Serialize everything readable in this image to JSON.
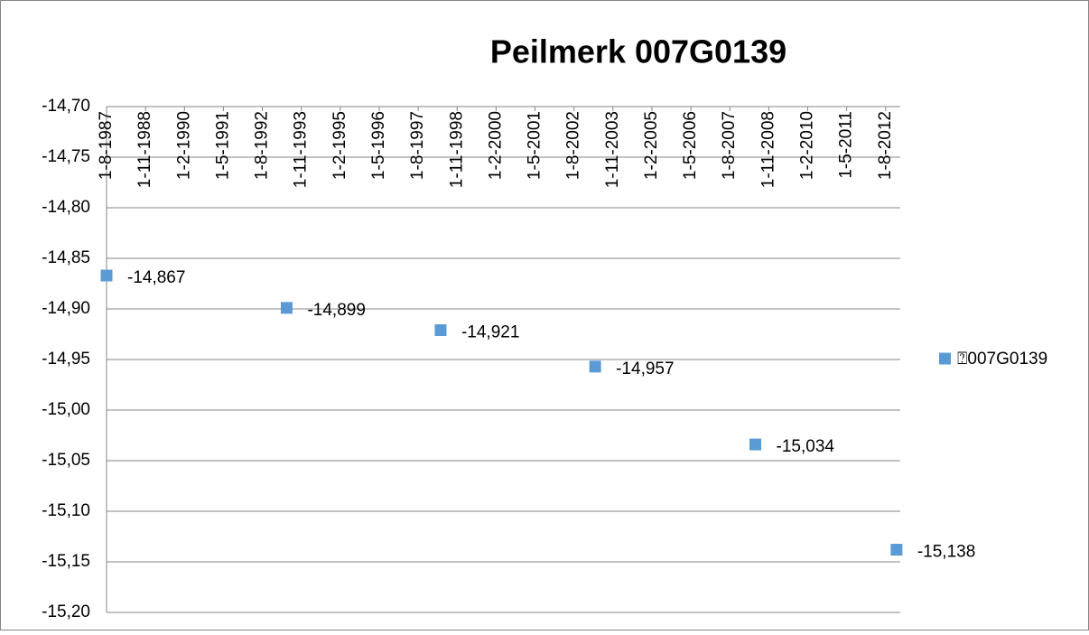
{
  "chart_data": {
    "type": "scatter",
    "title": "Peilmerk 007G0139",
    "x": [
      1987.58,
      1993.36,
      1998.3,
      2003.26,
      2008.4,
      2012.93
    ],
    "series": [
      {
        "name": "⍰007G0139",
        "color": "#5b9bd5",
        "values": [
          -14.867,
          -14.899,
          -14.921,
          -14.957,
          -15.034,
          -15.138
        ],
        "value_labels": [
          "-14,867",
          "-14,899",
          "-14,921",
          "-14,957",
          "-15,034",
          "-15,138"
        ]
      }
    ],
    "xlim": [
      1987.58,
      2013.05
    ],
    "xticks": [
      {
        "value": 1987.58,
        "label": "1-8-1987"
      },
      {
        "value": 1988.83,
        "label": "1-11-1988"
      },
      {
        "value": 1990.08,
        "label": "1-2-1990"
      },
      {
        "value": 1991.33,
        "label": "1-5-1991"
      },
      {
        "value": 1992.58,
        "label": "1-8-1992"
      },
      {
        "value": 1993.83,
        "label": "1-11-1993"
      },
      {
        "value": 1995.08,
        "label": "1-2-1995"
      },
      {
        "value": 1996.33,
        "label": "1-5-1996"
      },
      {
        "value": 1997.58,
        "label": "1-8-1997"
      },
      {
        "value": 1998.83,
        "label": "1-11-1998"
      },
      {
        "value": 2000.08,
        "label": "1-2-2000"
      },
      {
        "value": 2001.33,
        "label": "1-5-2001"
      },
      {
        "value": 2002.58,
        "label": "1-8-2002"
      },
      {
        "value": 2003.83,
        "label": "1-11-2003"
      },
      {
        "value": 2005.08,
        "label": "1-2-2005"
      },
      {
        "value": 2006.33,
        "label": "1-5-2006"
      },
      {
        "value": 2007.58,
        "label": "1-8-2007"
      },
      {
        "value": 2008.83,
        "label": "1-11-2008"
      },
      {
        "value": 2010.08,
        "label": "1-2-2010"
      },
      {
        "value": 2011.33,
        "label": "1-5-2011"
      },
      {
        "value": 2012.58,
        "label": "1-8-2012"
      }
    ],
    "ylim": [
      -15.2,
      -14.7
    ],
    "yticks": [
      {
        "value": -14.7,
        "label": "-14,70"
      },
      {
        "value": -14.75,
        "label": "-14,75"
      },
      {
        "value": -14.8,
        "label": "-14,80"
      },
      {
        "value": -14.85,
        "label": "-14,85"
      },
      {
        "value": -14.9,
        "label": "-14,90"
      },
      {
        "value": -14.95,
        "label": "-14,95"
      },
      {
        "value": -15.0,
        "label": "-15,00"
      },
      {
        "value": -15.05,
        "label": "-15,05"
      },
      {
        "value": -15.1,
        "label": "-15,10"
      },
      {
        "value": -15.15,
        "label": "-15,15"
      },
      {
        "value": -15.2,
        "label": "-15,20"
      }
    ],
    "grid": true,
    "legend": "right"
  }
}
